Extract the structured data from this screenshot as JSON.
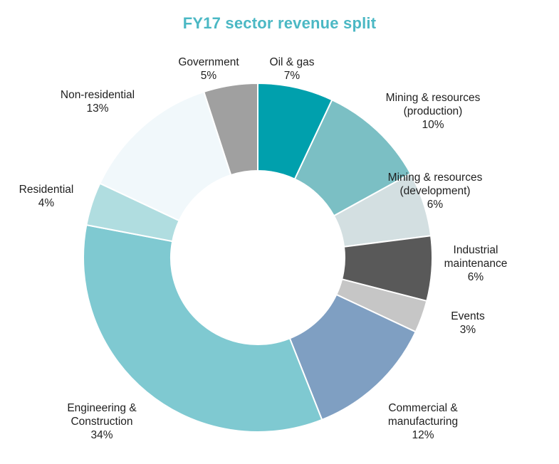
{
  "chart_data": {
    "type": "pie",
    "title": "FY17 sector revenue split",
    "donut": true,
    "slices": [
      {
        "label": [
          "Oil & gas"
        ],
        "value": 7,
        "value_label": "7%",
        "color": "#00a0ad"
      },
      {
        "label": [
          "Mining & resources",
          "(production)"
        ],
        "value": 10,
        "value_label": "10%",
        "color": "#7bbfc4"
      },
      {
        "label": [
          "Mining & resources",
          "(development)"
        ],
        "value": 6,
        "value_label": "6%",
        "color": "#d3dfe1"
      },
      {
        "label": [
          "Industrial",
          "maintenance"
        ],
        "value": 6,
        "value_label": "6%",
        "color": "#595959"
      },
      {
        "label": [
          "Events"
        ],
        "value": 3,
        "value_label": "3%",
        "color": "#c6c6c6"
      },
      {
        "label": [
          "Commercial &",
          "manufacturing"
        ],
        "value": 12,
        "value_label": "12%",
        "color": "#7f9fc2"
      },
      {
        "label": [
          "Engineering &",
          "Construction"
        ],
        "value": 34,
        "value_label": "34%",
        "color": "#7fc9d1"
      },
      {
        "label": [
          "Residential"
        ],
        "value": 4,
        "value_label": "4%",
        "color": "#b0dde0"
      },
      {
        "label": [
          "Non-residential"
        ],
        "value": 13,
        "value_label": "13%",
        "color": "#f1f8fb"
      },
      {
        "label": [
          "Government"
        ],
        "value": 5,
        "value_label": "5%",
        "color": "#a0a0a0"
      }
    ]
  }
}
